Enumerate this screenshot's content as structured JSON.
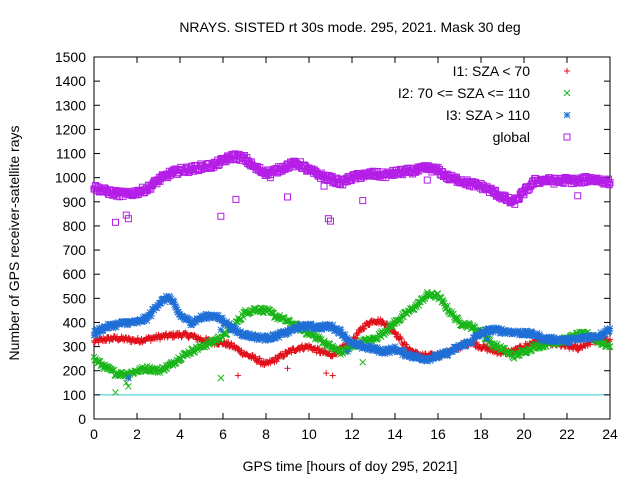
{
  "colors": {
    "I1": "#e0101a",
    "I2": "#19b519",
    "I3": "#1f6fd6",
    "global": "#b41ee6",
    "ref": "#33cccc",
    "axis": "#000000"
  },
  "chart_data": {
    "type": "scatter",
    "title": "NRAYS. SISTED rt 30s mode. 295, 2021. Mask 30 deg",
    "xlabel": "GPS time [hours of doy 295, 2021]",
    "ylabel": "Number of GPS receiver-satellite rays",
    "xlim": [
      0,
      24
    ],
    "ylim": [
      0,
      1500
    ],
    "xticks": [
      0,
      2,
      4,
      6,
      8,
      10,
      12,
      14,
      16,
      18,
      20,
      22,
      24
    ],
    "yticks": [
      0,
      100,
      200,
      300,
      400,
      500,
      600,
      700,
      800,
      900,
      1000,
      1100,
      1200,
      1300,
      1400,
      1500
    ],
    "legend_position": "top-right",
    "reference_line": {
      "y": 100,
      "color": "#33cccc"
    },
    "series": [
      {
        "name": "I1: SZA < 70",
        "key": "I1",
        "marker": "plus",
        "points": [
          [
            0,
            320
          ],
          [
            0.5,
            330
          ],
          [
            1,
            335
          ],
          [
            1.5,
            330
          ],
          [
            2,
            325
          ],
          [
            2.5,
            332
          ],
          [
            3,
            340
          ],
          [
            3.5,
            345
          ],
          [
            4,
            350
          ],
          [
            4.5,
            345
          ],
          [
            5,
            330
          ],
          [
            5.5,
            320
          ],
          [
            6,
            315
          ],
          [
            6.5,
            300
          ],
          [
            7,
            270
          ],
          [
            7.5,
            250
          ],
          [
            8,
            225
          ],
          [
            8.5,
            250
          ],
          [
            9,
            275
          ],
          [
            9.5,
            295
          ],
          [
            10,
            300
          ],
          [
            10.5,
            280
          ],
          [
            11,
            265
          ],
          [
            11.5,
            290
          ],
          [
            12,
            320
          ],
          [
            12.5,
            380
          ],
          [
            13,
            410
          ],
          [
            13.5,
            400
          ],
          [
            14,
            360
          ],
          [
            14.5,
            300
          ],
          [
            15,
            270
          ],
          [
            15.5,
            260
          ],
          [
            16,
            265
          ],
          [
            16.5,
            275
          ],
          [
            17,
            300
          ],
          [
            17.5,
            320
          ],
          [
            18,
            300
          ],
          [
            18.5,
            285
          ],
          [
            19,
            275
          ],
          [
            19.5,
            280
          ],
          [
            20,
            300
          ],
          [
            20.5,
            320
          ],
          [
            21,
            320
          ],
          [
            21.5,
            310
          ],
          [
            22,
            300
          ],
          [
            22.5,
            295
          ],
          [
            23,
            315
          ],
          [
            23.5,
            330
          ],
          [
            24,
            330
          ]
        ],
        "outliers": [
          [
            6.7,
            180
          ],
          [
            9,
            210
          ],
          [
            10.8,
            190
          ],
          [
            11.1,
            180
          ],
          [
            22.5,
            285
          ]
        ]
      },
      {
        "name": "I2: 70 <= SZA <= 110",
        "key": "I2",
        "marker": "cross",
        "points": [
          [
            0,
            250
          ],
          [
            0.5,
            215
          ],
          [
            1,
            190
          ],
          [
            1.5,
            185
          ],
          [
            2,
            200
          ],
          [
            2.5,
            210
          ],
          [
            3,
            200
          ],
          [
            3.5,
            220
          ],
          [
            4,
            255
          ],
          [
            4.5,
            280
          ],
          [
            5,
            300
          ],
          [
            5.5,
            320
          ],
          [
            6,
            345
          ],
          [
            6.5,
            385
          ],
          [
            7,
            440
          ],
          [
            7.5,
            455
          ],
          [
            8,
            450
          ],
          [
            8.5,
            425
          ],
          [
            9,
            405
          ],
          [
            9.5,
            380
          ],
          [
            10,
            355
          ],
          [
            10.5,
            330
          ],
          [
            11,
            300
          ],
          [
            11.5,
            275
          ],
          [
            12,
            300
          ],
          [
            12.5,
            320
          ],
          [
            13,
            330
          ],
          [
            13.5,
            360
          ],
          [
            14,
            400
          ],
          [
            14.5,
            435
          ],
          [
            15,
            470
          ],
          [
            15.5,
            515
          ],
          [
            16,
            510
          ],
          [
            16.5,
            450
          ],
          [
            17,
            400
          ],
          [
            17.5,
            385
          ],
          [
            18,
            360
          ],
          [
            18.5,
            310
          ],
          [
            19,
            290
          ],
          [
            19.5,
            260
          ],
          [
            20,
            280
          ],
          [
            20.5,
            300
          ],
          [
            21,
            310
          ],
          [
            21.5,
            320
          ],
          [
            22,
            330
          ],
          [
            22.5,
            350
          ],
          [
            23,
            350
          ],
          [
            23.5,
            320
          ],
          [
            24,
            300
          ]
        ],
        "outliers": [
          [
            1,
            110
          ],
          [
            1.5,
            150
          ],
          [
            1.6,
            135
          ],
          [
            5.9,
            170
          ],
          [
            12.5,
            235
          ]
        ]
      },
      {
        "name": "I3: SZA > 110",
        "key": "I3",
        "marker": "star",
        "points": [
          [
            0,
            355
          ],
          [
            0.5,
            380
          ],
          [
            1,
            390
          ],
          [
            1.5,
            400
          ],
          [
            2,
            400
          ],
          [
            2.5,
            420
          ],
          [
            3,
            480
          ],
          [
            3.5,
            505
          ],
          [
            4,
            430
          ],
          [
            4.5,
            400
          ],
          [
            5,
            420
          ],
          [
            5.5,
            430
          ],
          [
            6,
            410
          ],
          [
            6.5,
            370
          ],
          [
            7,
            350
          ],
          [
            7.5,
            340
          ],
          [
            8,
            335
          ],
          [
            8.5,
            345
          ],
          [
            9,
            360
          ],
          [
            9.5,
            380
          ],
          [
            10,
            385
          ],
          [
            10.5,
            380
          ],
          [
            11,
            385
          ],
          [
            11.5,
            360
          ],
          [
            12,
            310
          ],
          [
            12.5,
            300
          ],
          [
            13,
            290
          ],
          [
            13.5,
            280
          ],
          [
            14,
            290
          ],
          [
            14.5,
            270
          ],
          [
            15,
            255
          ],
          [
            15.5,
            250
          ],
          [
            16,
            260
          ],
          [
            16.5,
            275
          ],
          [
            17,
            300
          ],
          [
            17.5,
            320
          ],
          [
            18,
            355
          ],
          [
            18.5,
            370
          ],
          [
            19,
            365
          ],
          [
            19.5,
            360
          ],
          [
            20,
            355
          ],
          [
            20.5,
            350
          ],
          [
            21,
            330
          ],
          [
            21.5,
            330
          ],
          [
            22,
            325
          ],
          [
            22.5,
            330
          ],
          [
            23,
            340
          ],
          [
            23.5,
            345
          ],
          [
            24,
            375
          ]
        ],
        "outliers": [
          [
            1.6,
            170
          ],
          [
            5.9,
            370
          ],
          [
            8.2,
            330
          ],
          [
            11.8,
            280
          ],
          [
            18.3,
            330
          ]
        ]
      },
      {
        "name": "global",
        "key": "global",
        "marker": "box",
        "points": [
          [
            0,
            960
          ],
          [
            0.5,
            945
          ],
          [
            1,
            935
          ],
          [
            1.5,
            930
          ],
          [
            2,
            940
          ],
          [
            2.5,
            955
          ],
          [
            3,
            990
          ],
          [
            3.5,
            1015
          ],
          [
            4,
            1030
          ],
          [
            4.5,
            1035
          ],
          [
            5,
            1045
          ],
          [
            5.5,
            1050
          ],
          [
            6,
            1070
          ],
          [
            6.5,
            1090
          ],
          [
            7,
            1080
          ],
          [
            7.5,
            1040
          ],
          [
            8,
            1020
          ],
          [
            8.5,
            1030
          ],
          [
            9,
            1050
          ],
          [
            9.5,
            1060
          ],
          [
            10,
            1030
          ],
          [
            10.5,
            1010
          ],
          [
            11,
            995
          ],
          [
            11.5,
            980
          ],
          [
            12,
            1000
          ],
          [
            12.5,
            1010
          ],
          [
            13,
            1015
          ],
          [
            13.5,
            1010
          ],
          [
            14,
            1020
          ],
          [
            14.5,
            1025
          ],
          [
            15,
            1030
          ],
          [
            15.5,
            1040
          ],
          [
            16,
            1030
          ],
          [
            16.5,
            1000
          ],
          [
            17,
            990
          ],
          [
            17.5,
            975
          ],
          [
            18,
            965
          ],
          [
            18.5,
            945
          ],
          [
            19,
            920
          ],
          [
            19.5,
            895
          ],
          [
            20,
            940
          ],
          [
            20.5,
            985
          ],
          [
            21,
            990
          ],
          [
            21.5,
            985
          ],
          [
            22,
            990
          ],
          [
            22.5,
            985
          ],
          [
            23,
            995
          ],
          [
            23.5,
            990
          ],
          [
            24,
            980
          ]
        ],
        "outliers": [
          [
            1,
            815
          ],
          [
            1.5,
            845
          ],
          [
            1.6,
            830
          ],
          [
            5.9,
            840
          ],
          [
            6.6,
            910
          ],
          [
            9,
            920
          ],
          [
            10.7,
            965
          ],
          [
            10.9,
            830
          ],
          [
            11,
            820
          ],
          [
            12.5,
            905
          ],
          [
            15.5,
            990
          ],
          [
            22.5,
            925
          ],
          [
            8.2,
            1000
          ]
        ]
      }
    ]
  }
}
